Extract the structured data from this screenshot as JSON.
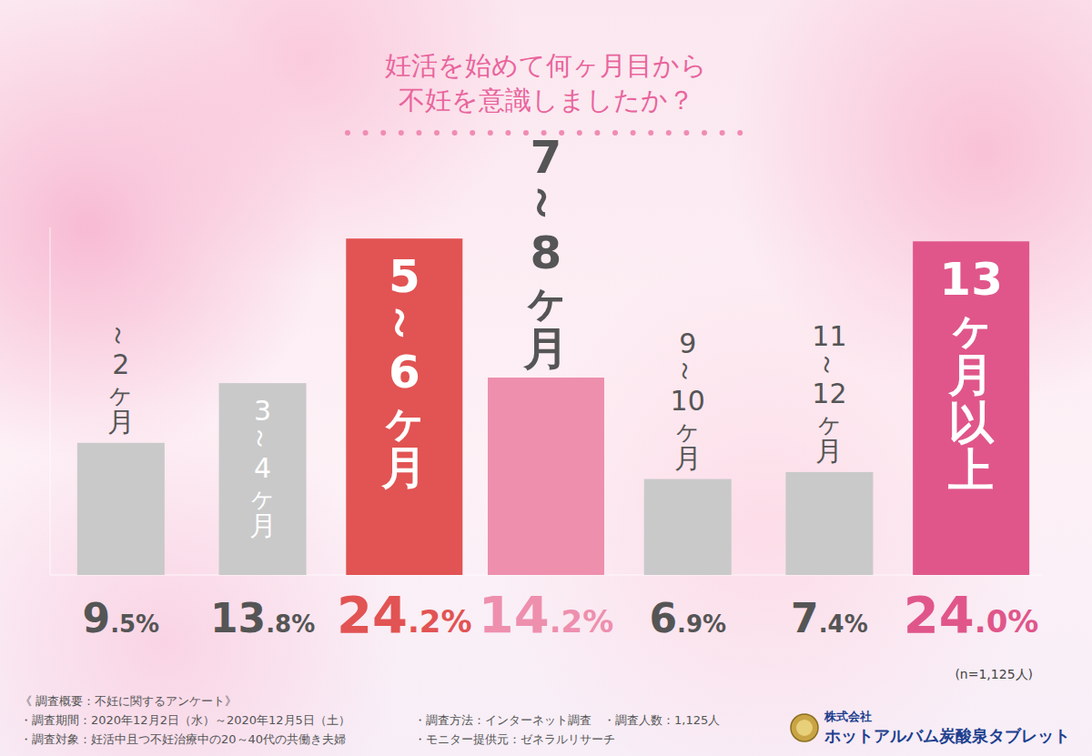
{
  "chart_data": {
    "type": "bar",
    "title": "妊活を始めて何ヶ月目から\n不妊を意識しましたか？",
    "categories": [
      "～2ヶ月",
      "3～4ヶ月",
      "5～6ヶ月",
      "7～8ヶ月",
      "9～10ヶ月",
      "11～12ヶ月",
      "13ヶ月以上"
    ],
    "values": [
      9.5,
      13.8,
      24.2,
      14.2,
      6.9,
      7.4,
      24.0
    ],
    "value_labels": [
      "9.5%",
      "13.8%",
      "24.2%",
      "14.2%",
      "6.9%",
      "7.4%",
      "24.0%"
    ],
    "color": "#c9c9c9",
    "colors": [
      "#c9c9c9",
      "#c9c9c9",
      "#e25353",
      "#ee8fae",
      "#c9c9c9",
      "#c9c9c9",
      "#e0568a"
    ],
    "ylim": [
      0,
      25
    ],
    "data_labels": true,
    "tick_labels": false,
    "grid": false,
    "annotations": [
      "(n=1,125人)"
    ],
    "footnotes": [
      [
        "《 調査概要：不妊に関するアンケート》"
      ],
      [
        "・調査期間：2020年12月2日（水）～2020年12月5日（土）",
        "・調査方法：インターネット調査　・調査人数：1,125人"
      ],
      [
        "・調査対象：妊活中且つ不妊治療中の20～40代の共働き夫婦",
        "・モニター提供元：ゼネラルリサーチ"
      ]
    ],
    "credit": [
      "株式会社",
      "ホットアルバム炭酸泉タブレット"
    ]
  }
}
